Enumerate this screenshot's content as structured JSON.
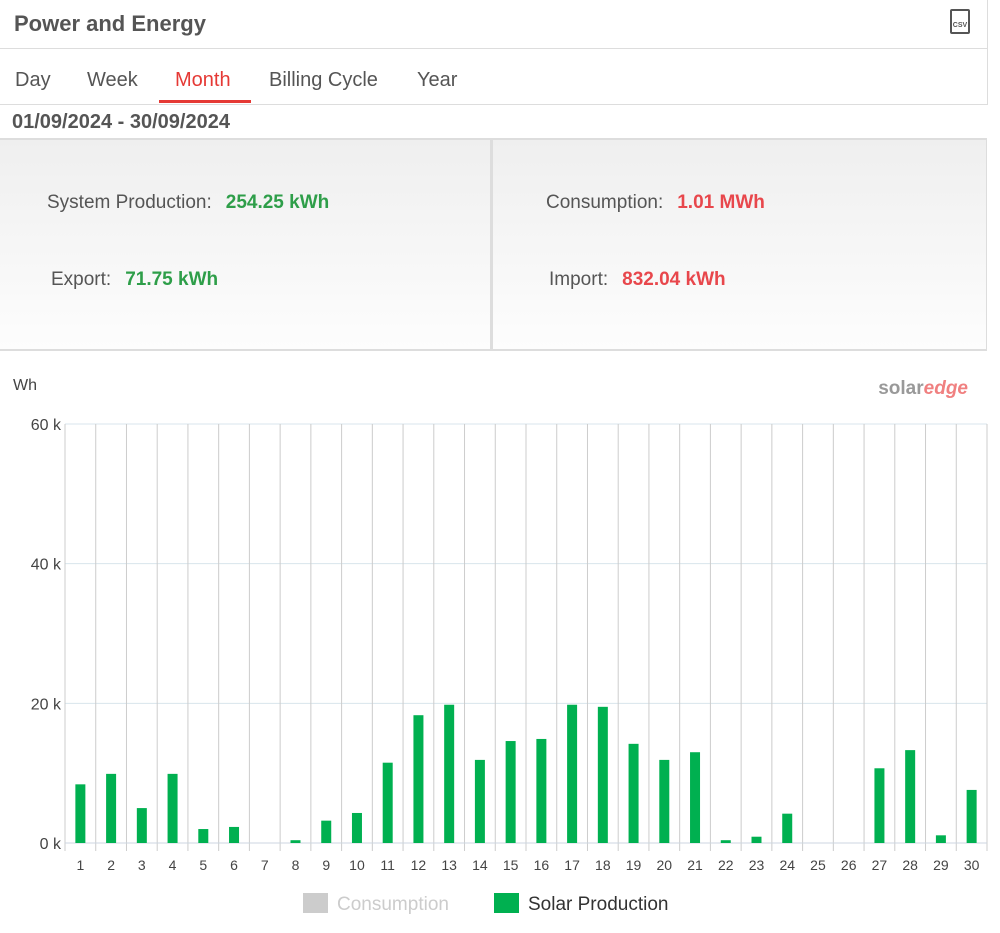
{
  "header": {
    "title": "Power and Energy",
    "icon": "CSV"
  },
  "tabs": [
    "Day",
    "Week",
    "Month",
    "Billing Cycle",
    "Year"
  ],
  "active_tab": "Month",
  "date_range": "01/09/2024 - 30/09/2024",
  "summary": [
    {
      "label": "System Production:",
      "value": "254.25 kWh",
      "color": "#2e9e49"
    },
    {
      "label": "Export:",
      "value": "71.75 kWh",
      "color": "#2e9e49"
    },
    {
      "label": "Consumption:",
      "value": "1.01 MWh",
      "color": "#e8474c"
    },
    {
      "label": "Import:",
      "value": "832.04 kWh",
      "color": "#e8474c"
    }
  ],
  "logo": {
    "part1": "solar",
    "part2": "edge"
  },
  "chart_data": {
    "type": "bar",
    "ylabel": "Wh",
    "categories": [
      "1",
      "2",
      "3",
      "4",
      "5",
      "6",
      "7",
      "8",
      "9",
      "10",
      "11",
      "12",
      "13",
      "14",
      "15",
      "16",
      "17",
      "18",
      "19",
      "20",
      "21",
      "22",
      "23",
      "24",
      "25",
      "26",
      "27",
      "28",
      "29",
      "30"
    ],
    "series": [
      {
        "name": "Consumption",
        "color": "#cccccc",
        "visible": false
      },
      {
        "name": "Solar Production",
        "color": "#00b050",
        "visible": true,
        "values": [
          8400,
          9900,
          5000,
          9900,
          2000,
          2300,
          0,
          400,
          3200,
          4300,
          11500,
          18300,
          19800,
          11900,
          14600,
          14900,
          19800,
          19500,
          14200,
          11900,
          13000,
          400,
          900,
          4200,
          0,
          0,
          10700,
          13300,
          1100,
          7600
        ]
      }
    ],
    "ylim": [
      0,
      60000
    ],
    "yticks": [
      {
        "value": 0,
        "label": "0 k"
      },
      {
        "value": 20000,
        "label": "20 k"
      },
      {
        "value": 40000,
        "label": "40 k"
      },
      {
        "value": 60000,
        "label": "60 k"
      }
    ],
    "grid": true
  }
}
